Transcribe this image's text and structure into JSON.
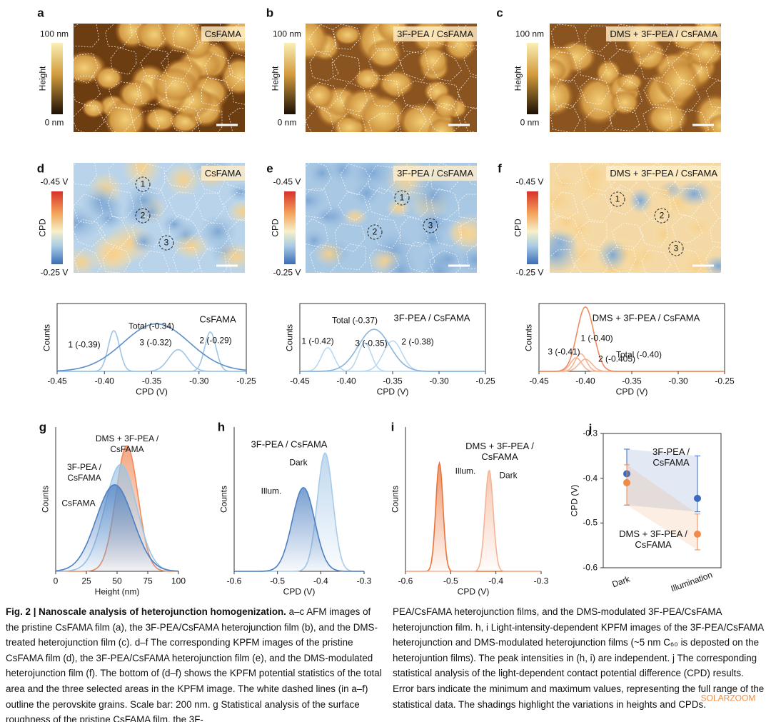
{
  "panels": [
    {
      "letter": "a",
      "label": "CsFAMA",
      "colorbar": {
        "title": "Height",
        "max": "100 nm",
        "min": "0 nm"
      }
    },
    {
      "letter": "b",
      "label": "3F-PEA / CsFAMA",
      "colorbar": {
        "title": "Height",
        "max": "100 nm",
        "min": "0 nm"
      }
    },
    {
      "letter": "c",
      "label": "DMS + 3F-PEA / CsFAMA",
      "colorbar": {
        "title": "Height",
        "max": "100 nm",
        "min": "0 nm"
      }
    },
    {
      "letter": "d",
      "label": "CsFAMA",
      "colorbar": {
        "title": "CPD",
        "max": "-0.45 V",
        "min": "-0.25 V"
      },
      "areas": [
        "1",
        "2",
        "3"
      ]
    },
    {
      "letter": "e",
      "label": "3F-PEA / CsFAMA",
      "colorbar": {
        "title": "CPD",
        "max": "-0.45 V",
        "min": "-0.25 V"
      },
      "areas": [
        "1",
        "2",
        "3"
      ]
    },
    {
      "letter": "f",
      "label": "DMS + 3F-PEA / CsFAMA",
      "colorbar": {
        "title": "CPD",
        "max": "-0.45 V",
        "min": "-0.25 V"
      },
      "areas": [
        "1",
        "2",
        "3"
      ]
    }
  ],
  "chart_data": [
    {
      "type": "density",
      "title": "CsFAMA",
      "x_label": "CPD (V)",
      "y_label": "Counts",
      "fill": false,
      "frame": true,
      "xlim": [
        -0.45,
        -0.25
      ],
      "xticks": [
        -0.45,
        {
          "value": -0.4,
          "label": "-0.40"
        },
        -0.35,
        {
          "value": -0.3,
          "label": "-0.30"
        },
        -0.25
      ],
      "ylim": [
        0,
        1
      ],
      "series": [
        {
          "name": "1 (-0.39)",
          "color": "#9fc5e6",
          "mean": -0.39,
          "sd": 0.006,
          "peak": 0.6
        },
        {
          "name": "3 (-0.32)",
          "color": "#9fc5e6",
          "mean": -0.322,
          "sd": 0.01,
          "peak": 0.32
        },
        {
          "name": "2 (-0.29)",
          "color": "#9fc5e6",
          "mean": -0.288,
          "sd": 0.006,
          "peak": 0.58
        },
        {
          "name": "Total (-0.34)",
          "color": "#5b8fc8",
          "mean": -0.345,
          "sd": 0.035,
          "peak": 0.7
        }
      ]
    },
    {
      "type": "density",
      "title": "3F-PEA / CsFAMA",
      "x_label": "CPD (V)",
      "y_label": "Counts",
      "fill": false,
      "frame": true,
      "xlim": [
        -0.45,
        -0.25
      ],
      "xticks": [
        -0.45,
        {
          "value": -0.4,
          "label": "-0.40"
        },
        -0.35,
        {
          "value": -0.3,
          "label": "-0.30"
        },
        -0.25
      ],
      "ylim": [
        0,
        1
      ],
      "series": [
        {
          "name": "1 (-0.42)",
          "color": "#bcd8ee",
          "mean": -0.42,
          "sd": 0.007,
          "peak": 0.35
        },
        {
          "name": "2 (-0.38)",
          "color": "#bcd8ee",
          "mean": -0.38,
          "sd": 0.007,
          "peak": 0.42
        },
        {
          "name": "3 (-0.35)",
          "color": "#bcd8ee",
          "mean": -0.35,
          "sd": 0.01,
          "peak": 0.45
        },
        {
          "name": "Total (-0.37)",
          "color": "#88b5dc",
          "mean": -0.37,
          "sd": 0.017,
          "peak": 0.62
        }
      ]
    },
    {
      "type": "density",
      "title": "DMS + 3F-PEA / CsFAMA",
      "x_label": "CPD (V)",
      "y_label": "Counts",
      "fill": false,
      "frame": true,
      "xlim": [
        -0.45,
        -0.25
      ],
      "xticks": [
        -0.45,
        {
          "value": -0.4,
          "label": "-0.40"
        },
        -0.35,
        {
          "value": -0.3,
          "label": "-0.30"
        },
        -0.25
      ],
      "ylim": [
        0,
        1
      ],
      "series": [
        {
          "name": "3 (-0.41)",
          "color": "#f6b394",
          "mean": -0.41,
          "sd": 0.006,
          "peak": 0.2
        },
        {
          "name": "2 (-0.405)",
          "color": "#f6b394",
          "mean": -0.405,
          "sd": 0.006,
          "peak": 0.26
        },
        {
          "name": "1 (-0.40)",
          "color": "#f6b394",
          "mean": -0.4,
          "sd": 0.007,
          "peak": 0.18
        },
        {
          "name": "Total (-0.40)",
          "color": "#ee8d62",
          "mean": -0.4,
          "sd": 0.009,
          "peak": 0.95
        }
      ]
    },
    {
      "type": "density",
      "letter": "g",
      "x_label": "Height (nm)",
      "y_label": "Counts",
      "fill": true,
      "frame": false,
      "xlim": [
        0,
        100
      ],
      "xticks": [
        0,
        25,
        50,
        75,
        100
      ],
      "ylim": [
        0,
        1
      ],
      "series": [
        {
          "name": "DMS + 3F-PEA /\nCsFAMA",
          "color": "#f08a5a",
          "mean": 58,
          "sd": 9,
          "peak": 0.87
        },
        {
          "name": "3F-PEA /\nCsFAMA",
          "color": "#9cc7e8",
          "mean": 53,
          "sd": 13,
          "peak": 0.74
        },
        {
          "name": "CsFAMA",
          "color": "#4d80c2",
          "mean": 48,
          "sd": 15,
          "peak": 0.6
        }
      ]
    },
    {
      "type": "density",
      "letter": "h",
      "title": "3F-PEA / CsFAMA",
      "x_label": "CPD (V)",
      "y_label": "Counts",
      "fill": true,
      "frame": false,
      "xlim": [
        -0.6,
        -0.3
      ],
      "xticks": [
        -0.6,
        -0.5,
        -0.4,
        -0.3
      ],
      "ylim": [
        0,
        1
      ],
      "series": [
        {
          "name": "Dark",
          "color": "#a9cbe8",
          "mean": -0.39,
          "sd": 0.018,
          "peak": 0.82
        },
        {
          "name": "Illum.",
          "color": "#4d80c2",
          "mean": -0.44,
          "sd": 0.026,
          "peak": 0.58
        }
      ]
    },
    {
      "type": "density",
      "letter": "i",
      "title": "DMS + 3F-PEA /\nCsFAMA",
      "x_label": "CPD (V)",
      "y_label": "Counts",
      "fill": true,
      "frame": false,
      "xlim": [
        -0.6,
        -0.3
      ],
      "xticks": [
        -0.6,
        -0.5,
        -0.4,
        -0.3
      ],
      "ylim": [
        0,
        1
      ],
      "series": [
        {
          "name": "Illum.",
          "color": "#e8743b",
          "mean": -0.525,
          "sd": 0.008,
          "peak": 0.75
        },
        {
          "name": "Dark",
          "color": "#f4b596",
          "mean": -0.415,
          "sd": 0.009,
          "peak": 0.7
        }
      ]
    },
    {
      "type": "errorbar",
      "letter": "j",
      "y_label": "CPD (V)",
      "frame": true,
      "categories": [
        "Dark",
        "Illumination"
      ],
      "ylim": [
        -0.6,
        -0.3
      ],
      "yticks": [
        -0.6,
        -0.5,
        -0.4,
        -0.3
      ],
      "series": [
        {
          "name": "3F-PEA /\nCsFAMA",
          "color": "#3a6bbf",
          "values": [
            -0.39,
            -0.445
          ],
          "low": [
            -0.46,
            -0.475
          ],
          "high": [
            -0.335,
            -0.35
          ]
        },
        {
          "name": "DMS + 3F-PEA /\nCsFAMA",
          "color": "#f08a4b",
          "values": [
            -0.41,
            -0.525
          ],
          "low": [
            -0.46,
            -0.56
          ],
          "high": [
            -0.37,
            -0.48
          ]
        }
      ]
    }
  ],
  "caption": {
    "label": "Fig. 2 |",
    "title": "Nanoscale analysis of heterojunction homogenization.",
    "left": "a–c AFM images of the pristine CsFAMA film (a), the 3F-PEA/CsFAMA heterojunction film (b), and the DMS-treated heterojunction film (c). d–f The corresponding KPFM images of the pristine CsFAMA film (d), the 3F-PEA/CsFAMA heterojunction film (e), and the DMS-modulated heterojunction film (f). The bottom of (d–f) shows the KPFM potential statistics of the total area and the three selected areas in the KPFM image. The white dashed lines (in a–f) outline the perovskite grains. Scale bar: 200 nm. g Statistical analysis of the surface roughness of the pristine CsFAMA film, the 3F-",
    "right": "PEA/CsFAMA heterojunction films, and the DMS-modulated 3F-PEA/CsFAMA heterojunction film. h, i Light-intensity-dependent KPFM images of the 3F-PEA/CsFAMA heterojunction and DMS-modulated heterojunction films (~5 nm C₆₀ is deposted on the heterojuntion films). The peak intensities in (h, i) are independent. j The corresponding statistical analysis of the light-dependent contact potential difference (CPD) results. Error bars indicate the minimum and maximum values, representing the full range of the statistical data. The shadings highlight the variations in heights and CPDs.",
    "watermark": "SOLARZOOM"
  }
}
